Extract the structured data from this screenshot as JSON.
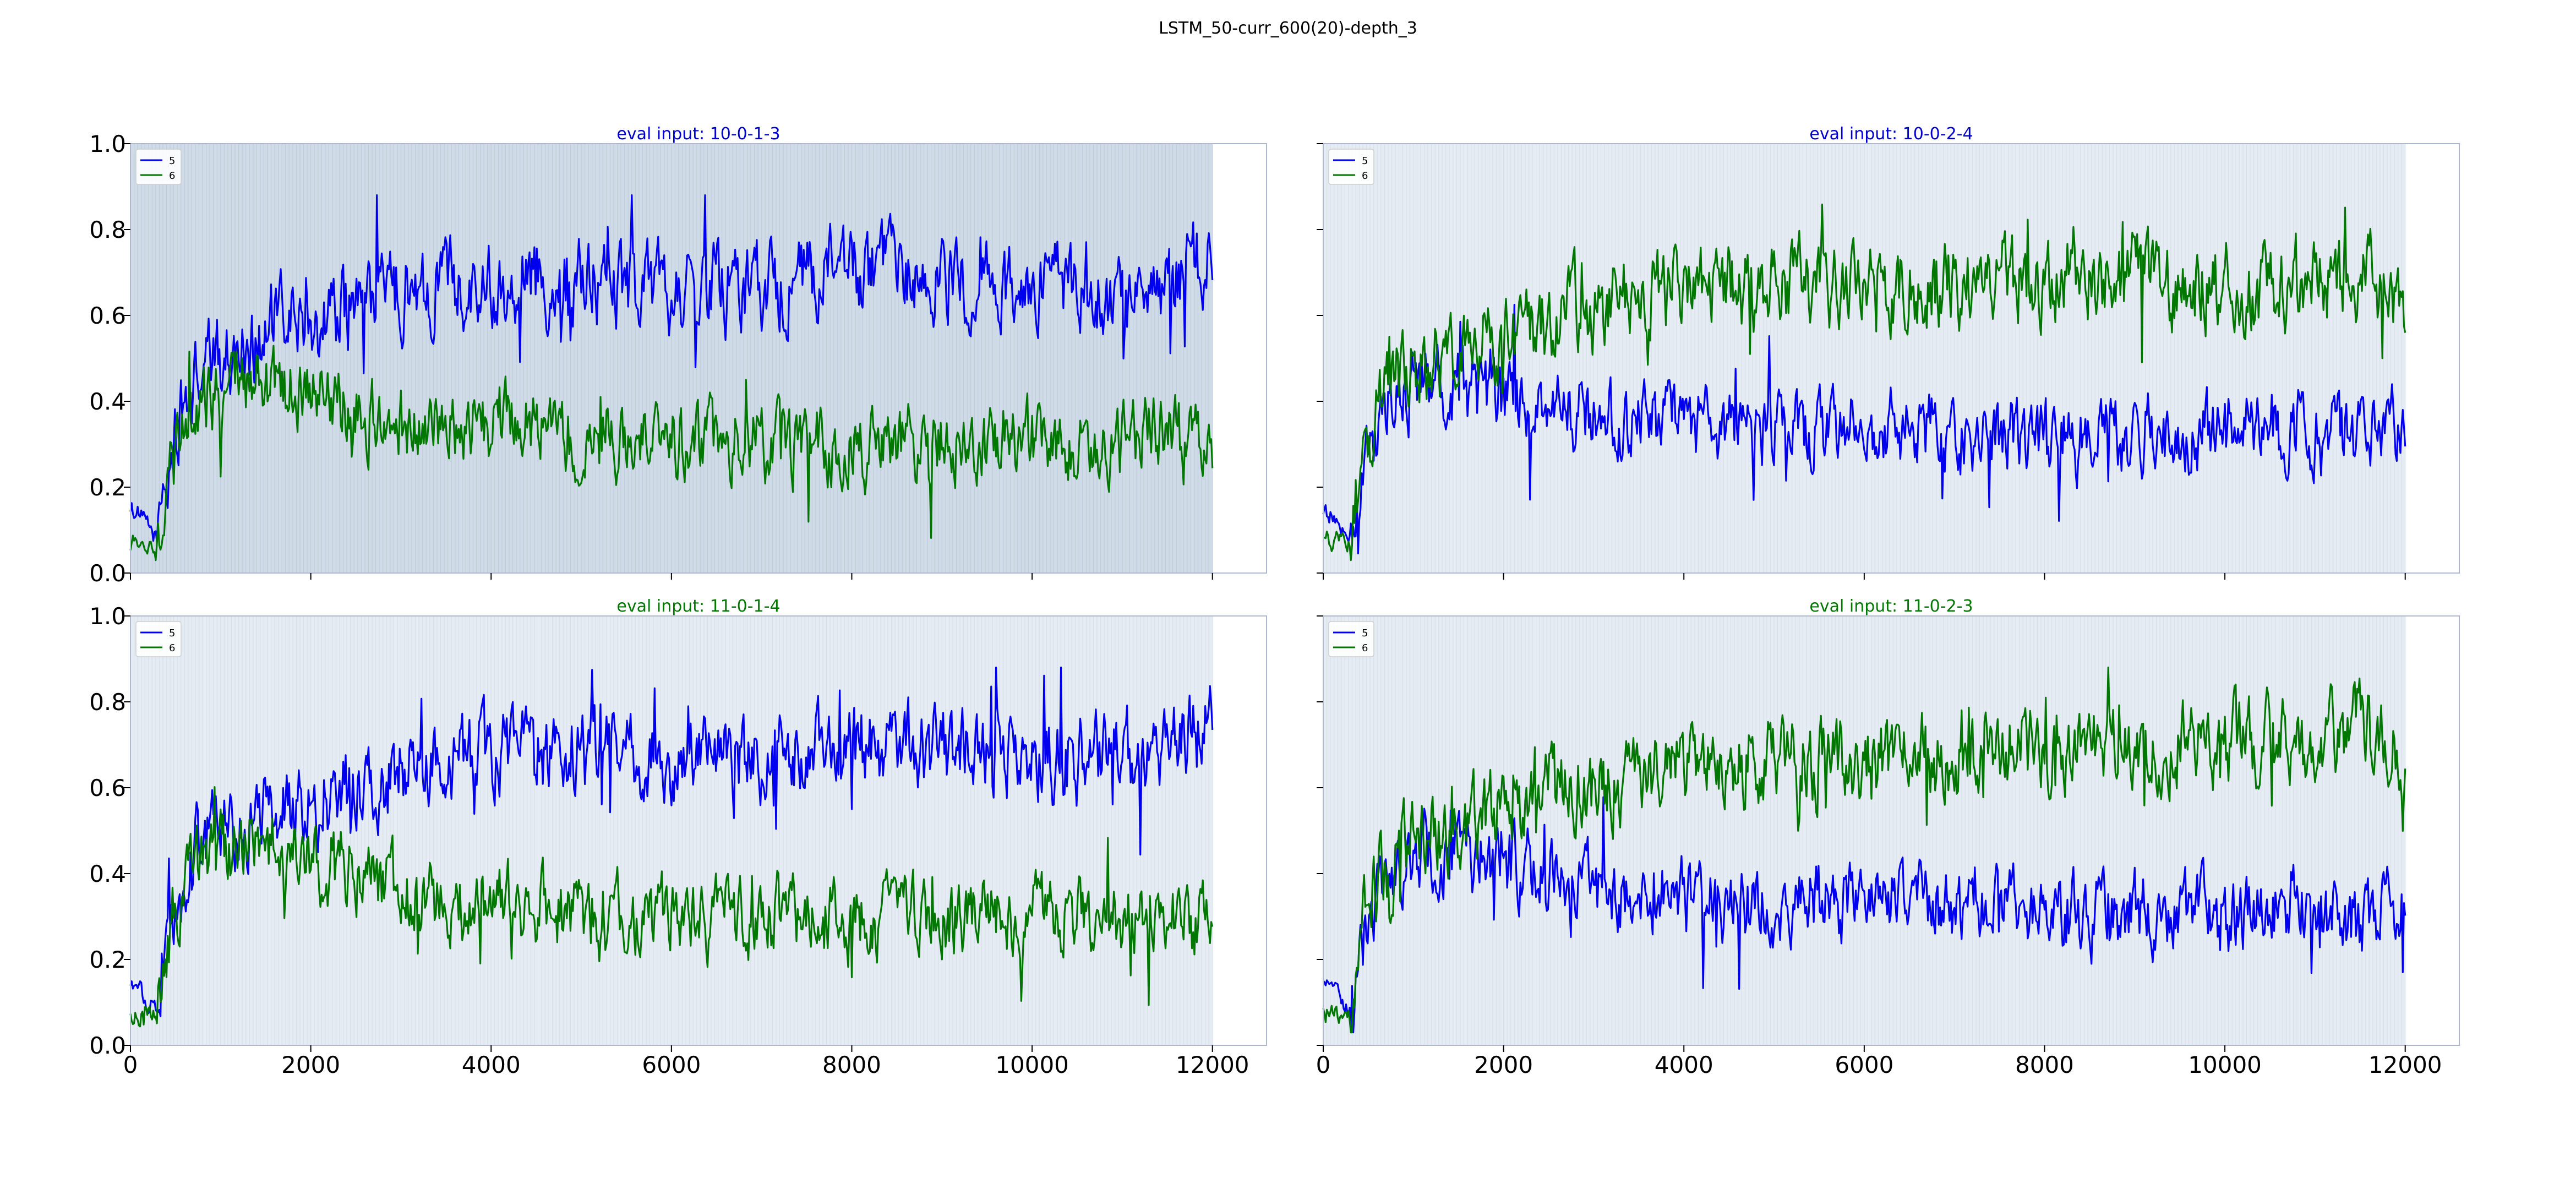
{
  "figure_title": "LSTM_50-curr_600(20)-depth_3",
  "colors": {
    "series_5": "#0000ee",
    "series_6": "#007700",
    "band": "#cdd9e6"
  },
  "chart_data": [
    {
      "type": "line",
      "title": "eval input: 10-0-1-3",
      "title_color": "#0000cc",
      "xlim": [
        0,
        12600
      ],
      "ylim": [
        0,
        1
      ],
      "xticks": [
        "0",
        "2000",
        "4000",
        "6000",
        "8000",
        "10000",
        "12000"
      ],
      "yticks": [
        "0.0",
        "0.2",
        "0.4",
        "0.6",
        "0.8",
        "1.0"
      ],
      "show_xtick_labels": false,
      "show_ytick_labels": true,
      "legend_placement": "top-left",
      "shaded_band": {
        "x_start": 0,
        "x_end": 12000,
        "intensity": "strong"
      },
      "series": [
        {
          "name": "5",
          "color": "#0000ee",
          "x": [
            0,
            300,
            500,
            800,
            1200,
            1600,
            2000,
            2500,
            3000,
            3500,
            4000,
            5000,
            6000,
            7000,
            8000,
            9000,
            10000,
            10500,
            11000,
            11500,
            12000
          ],
          "y": [
            0.16,
            0.08,
            0.33,
            0.48,
            0.52,
            0.58,
            0.6,
            0.62,
            0.66,
            0.68,
            0.68,
            0.68,
            0.66,
            0.67,
            0.7,
            0.68,
            0.66,
            0.65,
            0.64,
            0.66,
            0.74
          ],
          "amplitude": 0.11
        },
        {
          "name": "6",
          "color": "#007700",
          "x": [
            0,
            300,
            500,
            800,
            1200,
            1600,
            2000,
            2500,
            3000,
            3500,
            4000,
            5000,
            6000,
            7000,
            8000,
            9000,
            10000,
            10500,
            11000,
            11500,
            12000
          ],
          "y": [
            0.07,
            0.07,
            0.32,
            0.42,
            0.45,
            0.43,
            0.42,
            0.38,
            0.34,
            0.33,
            0.34,
            0.32,
            0.31,
            0.3,
            0.29,
            0.3,
            0.31,
            0.3,
            0.3,
            0.33,
            0.25
          ],
          "amplitude": 0.1
        }
      ]
    },
    {
      "type": "line",
      "title": "eval input: 10-0-2-4",
      "title_color": "#0000cc",
      "xlim": [
        0,
        12600
      ],
      "ylim": [
        0,
        1
      ],
      "xticks": [
        "0",
        "2000",
        "4000",
        "6000",
        "8000",
        "10000",
        "12000"
      ],
      "yticks": [
        "0.0",
        "0.2",
        "0.4",
        "0.6",
        "0.8",
        "1.0"
      ],
      "show_xtick_labels": false,
      "show_ytick_labels": false,
      "legend_placement": "top-left",
      "shaded_band": {
        "x_start": 0,
        "x_end": 12000,
        "intensity": "light"
      },
      "series": [
        {
          "name": "5",
          "color": "#0000ee",
          "x": [
            0,
            300,
            500,
            800,
            1200,
            1600,
            2000,
            2500,
            3000,
            3500,
            4000,
            5000,
            6000,
            7000,
            8000,
            9000,
            10000,
            10500,
            11000,
            11500,
            12000
          ],
          "y": [
            0.14,
            0.08,
            0.3,
            0.42,
            0.45,
            0.42,
            0.4,
            0.38,
            0.37,
            0.35,
            0.34,
            0.33,
            0.34,
            0.32,
            0.31,
            0.32,
            0.33,
            0.34,
            0.33,
            0.3,
            0.35
          ],
          "amplitude": 0.1
        },
        {
          "name": "6",
          "color": "#007700",
          "x": [
            0,
            300,
            500,
            800,
            1200,
            1600,
            2000,
            2500,
            3000,
            3500,
            4000,
            5000,
            6000,
            7000,
            8000,
            9000,
            10000,
            10500,
            11000,
            11500,
            12000
          ],
          "y": [
            0.08,
            0.07,
            0.33,
            0.46,
            0.5,
            0.53,
            0.56,
            0.6,
            0.62,
            0.64,
            0.66,
            0.67,
            0.66,
            0.68,
            0.69,
            0.68,
            0.66,
            0.65,
            0.66,
            0.7,
            0.64
          ],
          "amplitude": 0.11
        }
      ]
    },
    {
      "type": "line",
      "title": "eval input: 11-0-1-4",
      "title_color": "#007700",
      "xlim": [
        0,
        12600
      ],
      "ylim": [
        0,
        1
      ],
      "xticks": [
        "0",
        "2000",
        "4000",
        "6000",
        "8000",
        "10000",
        "12000"
      ],
      "yticks": [
        "0.0",
        "0.2",
        "0.4",
        "0.6",
        "0.8",
        "1.0"
      ],
      "show_xtick_labels": true,
      "show_ytick_labels": true,
      "legend_placement": "top-left",
      "shaded_band": {
        "x_start": 0,
        "x_end": 12000,
        "intensity": "light"
      },
      "series": [
        {
          "name": "5",
          "color": "#0000ee",
          "x": [
            0,
            300,
            500,
            800,
            1200,
            1600,
            2000,
            2500,
            3000,
            3500,
            4000,
            5000,
            6000,
            7000,
            8000,
            9000,
            10000,
            10500,
            11000,
            11500,
            12000
          ],
          "y": [
            0.15,
            0.08,
            0.32,
            0.47,
            0.51,
            0.56,
            0.58,
            0.6,
            0.64,
            0.67,
            0.68,
            0.69,
            0.67,
            0.67,
            0.7,
            0.68,
            0.67,
            0.66,
            0.68,
            0.7,
            0.73
          ],
          "amplitude": 0.11
        },
        {
          "name": "6",
          "color": "#007700",
          "x": [
            0,
            300,
            500,
            800,
            1200,
            1600,
            2000,
            2500,
            3000,
            3500,
            4000,
            5000,
            6000,
            7000,
            8000,
            9000,
            10000,
            10500,
            11000,
            11500,
            12000
          ],
          "y": [
            0.07,
            0.07,
            0.33,
            0.43,
            0.46,
            0.45,
            0.42,
            0.4,
            0.35,
            0.33,
            0.34,
            0.31,
            0.3,
            0.3,
            0.29,
            0.3,
            0.3,
            0.29,
            0.3,
            0.32,
            0.27
          ],
          "amplitude": 0.1
        }
      ]
    },
    {
      "type": "line",
      "title": "eval input: 11-0-2-3",
      "title_color": "#007700",
      "xlim": [
        0,
        12600
      ],
      "ylim": [
        0,
        1
      ],
      "xticks": [
        "0",
        "2000",
        "4000",
        "6000",
        "8000",
        "10000",
        "12000"
      ],
      "yticks": [
        "0.0",
        "0.2",
        "0.4",
        "0.6",
        "0.8",
        "1.0"
      ],
      "show_xtick_labels": true,
      "show_ytick_labels": false,
      "legend_placement": "top-left",
      "shaded_band": {
        "x_start": 0,
        "x_end": 12000,
        "intensity": "light"
      },
      "series": [
        {
          "name": "5",
          "color": "#0000ee",
          "x": [
            0,
            300,
            500,
            800,
            1200,
            1600,
            2000,
            2500,
            3000,
            3500,
            4000,
            5000,
            6000,
            7000,
            8000,
            9000,
            10000,
            10500,
            11000,
            11500,
            12000
          ],
          "y": [
            0.15,
            0.08,
            0.3,
            0.42,
            0.46,
            0.45,
            0.42,
            0.4,
            0.37,
            0.35,
            0.34,
            0.33,
            0.33,
            0.32,
            0.3,
            0.31,
            0.3,
            0.31,
            0.32,
            0.28,
            0.33
          ],
          "amplitude": 0.1
        },
        {
          "name": "6",
          "color": "#007700",
          "x": [
            0,
            300,
            500,
            800,
            1200,
            1600,
            2000,
            2500,
            3000,
            3500,
            4000,
            5000,
            6000,
            7000,
            8000,
            9000,
            10000,
            10500,
            11000,
            11500,
            12000
          ],
          "y": [
            0.08,
            0.07,
            0.34,
            0.46,
            0.5,
            0.52,
            0.55,
            0.58,
            0.6,
            0.63,
            0.65,
            0.66,
            0.66,
            0.68,
            0.7,
            0.7,
            0.71,
            0.72,
            0.7,
            0.74,
            0.65
          ],
          "amplitude": 0.11
        }
      ]
    }
  ]
}
